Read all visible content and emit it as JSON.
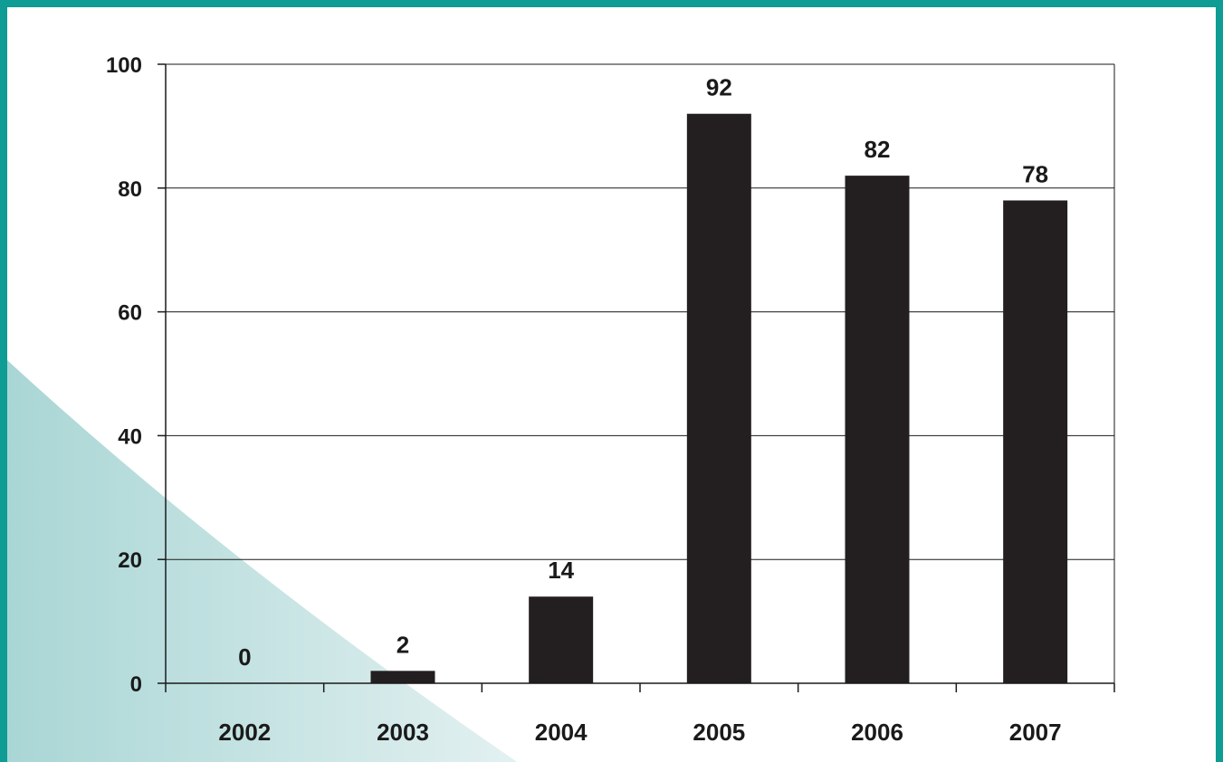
{
  "colors": {
    "border": "#0e9c94",
    "bar": "#231f20",
    "decor_light": "#e4f1f1",
    "decor_dark": "#a9d6d5"
  },
  "chart_data": {
    "type": "bar",
    "categories": [
      "2002",
      "2003",
      "2004",
      "2005",
      "2006",
      "2007"
    ],
    "values": [
      0,
      2,
      14,
      92,
      82,
      78
    ],
    "data_labels": [
      "0",
      "2",
      "14",
      "92",
      "82",
      "78"
    ],
    "ylim": [
      0,
      100
    ],
    "yticks": [
      0,
      20,
      40,
      60,
      80,
      100
    ],
    "ytick_labels": [
      "0",
      "20",
      "40",
      "60",
      "80",
      "100"
    ],
    "grid": true,
    "legend": "none",
    "title": "",
    "xlabel": "",
    "ylabel": ""
  }
}
